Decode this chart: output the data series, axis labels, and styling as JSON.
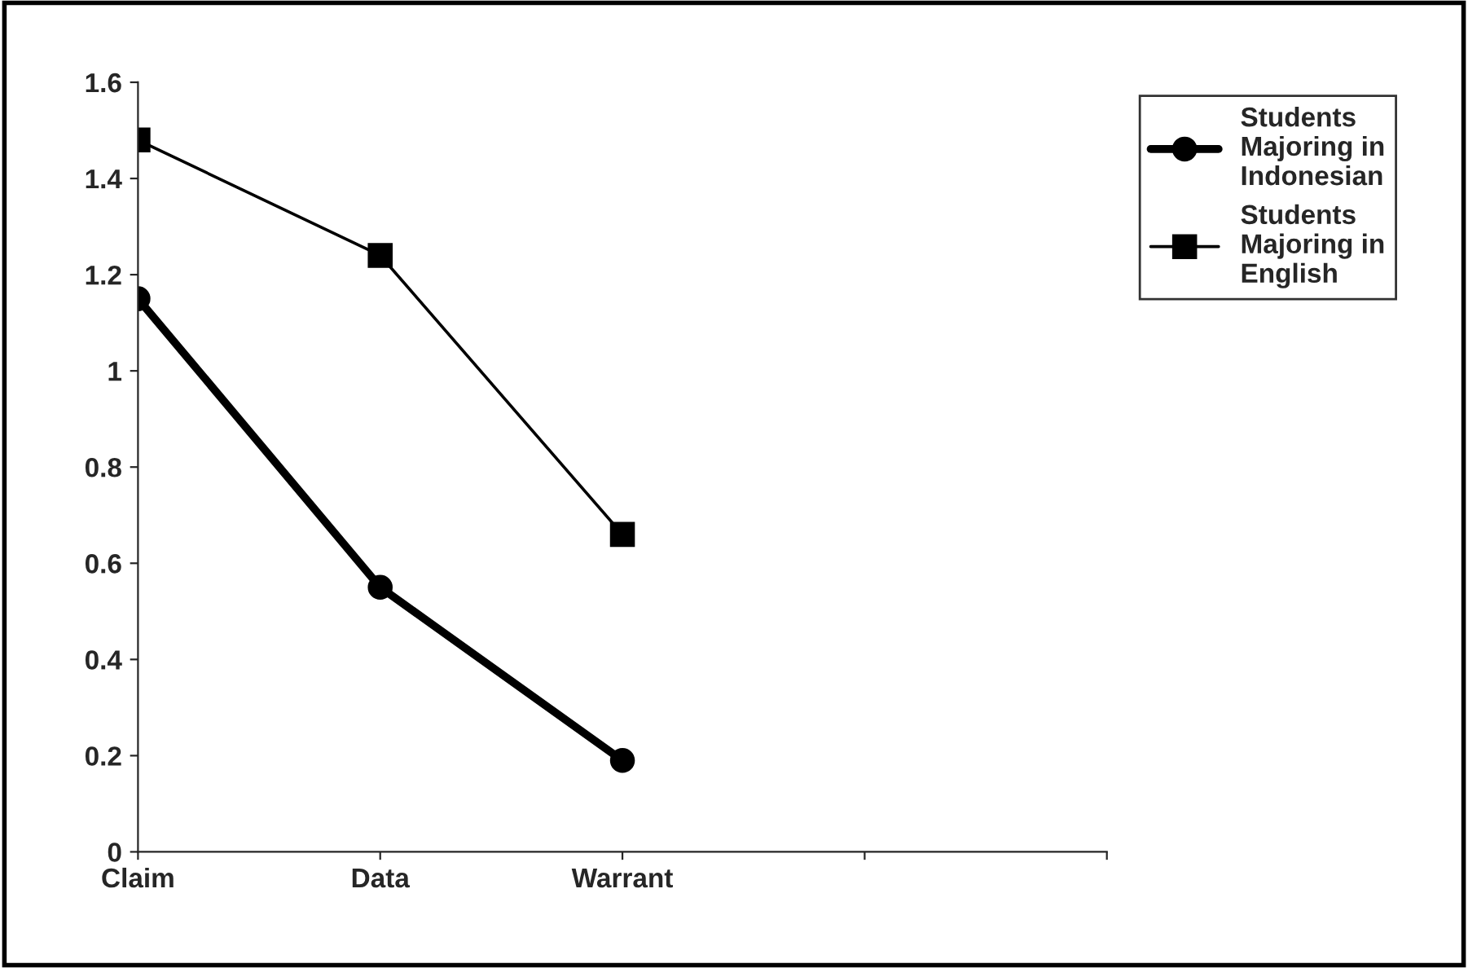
{
  "chart_data": {
    "type": "line",
    "categories": [
      "Claim",
      "Data",
      "Warrant",
      null,
      null
    ],
    "series": [
      {
        "name": "Students Majoring in Indonesian",
        "color": "#000000",
        "marker": "circle",
        "values": [
          1.15,
          0.55,
          0.19,
          null,
          null
        ]
      },
      {
        "name": "Students Majoring in English",
        "color": "#000000",
        "marker": "square",
        "values": [
          1.48,
          1.24,
          0.66,
          null,
          null
        ]
      }
    ],
    "ylim": [
      0,
      1.6
    ],
    "yticks": [
      0,
      0.2,
      0.4,
      0.6,
      0.8,
      1,
      1.2,
      1.4,
      1.6
    ],
    "grid": false,
    "legend": "top right",
    "line_style": "solid"
  }
}
